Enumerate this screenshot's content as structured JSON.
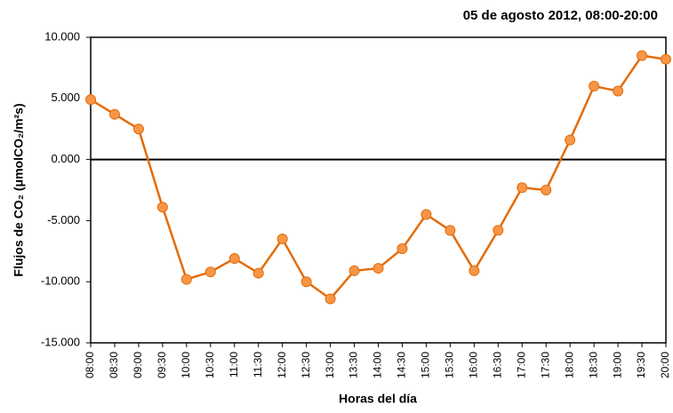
{
  "chart_data": {
    "type": "line",
    "title": "05 de agosto 2012, 08:00-20:00",
    "x_label": "Horas del día",
    "y_label": "Flujos de CO₂ (μmolCO₂/m²s)",
    "categories": [
      "08:00",
      "08:30",
      "09:00",
      "09:30",
      "10:00",
      "10:30",
      "11:00",
      "11:30",
      "12:00",
      "12:30",
      "13:00",
      "13:30",
      "14:00",
      "14:30",
      "15:00",
      "15:30",
      "16:00",
      "16:30",
      "17:00",
      "17:30",
      "18:00",
      "18:30",
      "19:00",
      "19:30",
      "20:00"
    ],
    "series": [
      {
        "color": "#e36c09",
        "marker_color": "#f79646",
        "values": [
          4.9,
          3.7,
          2.5,
          -3.9,
          -9.8,
          -9.2,
          -8.1,
          -9.3,
          -6.5,
          -10.0,
          -11.4,
          -9.1,
          -8.9,
          -7.3,
          -4.5,
          -5.8,
          -9.1,
          -5.8,
          -2.3,
          -2.5,
          1.6,
          6.0,
          5.6,
          8.5,
          8.2
        ]
      }
    ],
    "ylim": [
      -15,
      10
    ],
    "yticks": [
      {
        "value": -15,
        "label": "-15.000"
      },
      {
        "value": -10,
        "label": "-10.000"
      },
      {
        "value": -5,
        "label": "-5.000"
      },
      {
        "value": 0,
        "label": "0.000"
      },
      {
        "value": 5,
        "label": "5.000"
      },
      {
        "value": 10,
        "label": "10.000"
      }
    ]
  }
}
